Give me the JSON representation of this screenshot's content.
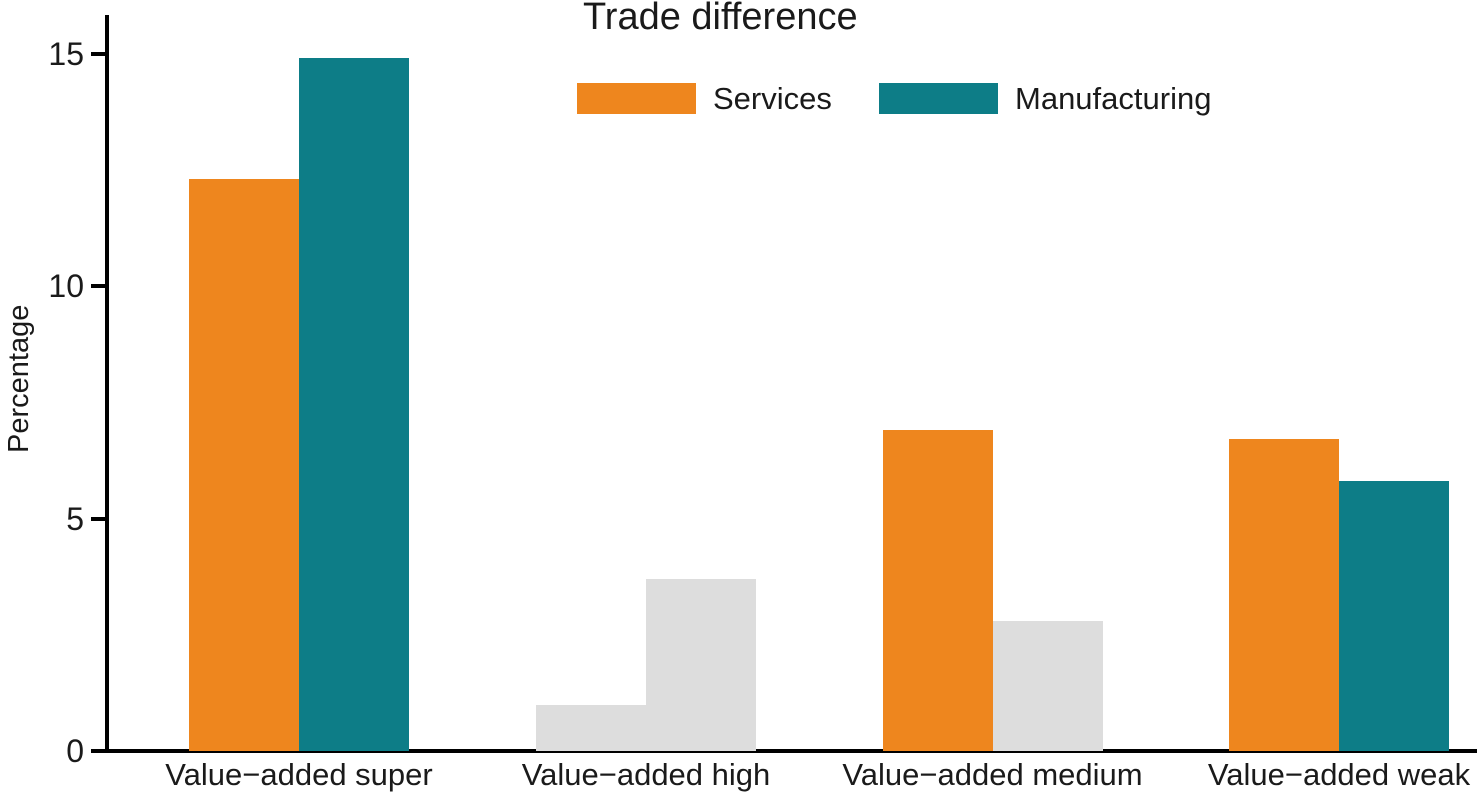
{
  "chart": {
    "background_color": "#FFFFFF",
    "title": "Trade difference",
    "y_axis_title": "Percentage"
  },
  "chart_data": {
    "type": "bar",
    "title": "Trade difference",
    "xlabel": "",
    "ylabel": "Percentage",
    "ylim": [
      0,
      15
    ],
    "yticks": [
      0,
      5,
      10,
      15
    ],
    "ytick_labels": [
      "0",
      "5",
      "10",
      "15"
    ],
    "grid": false,
    "legend_position": "top-center",
    "legend_entries": [
      "Services",
      "Manufacturing"
    ],
    "categories": [
      "Value−added super",
      "Value−added high",
      "Value−added medium",
      "Value−added weak"
    ],
    "series": [
      {
        "name": "Services",
        "color": "#EE861E",
        "values": [
          12.3,
          1.0,
          6.9,
          6.7
        ],
        "bar_colors": [
          "#EE861E",
          "#DDDDDD",
          "#EE861E",
          "#EE861E"
        ],
        "muted": [
          false,
          true,
          false,
          false
        ]
      },
      {
        "name": "Manufacturing",
        "color": "#0D7D87",
        "values": [
          14.9,
          3.7,
          2.8,
          5.8
        ],
        "bar_colors": [
          "#0D7D87",
          "#DDDDDD",
          "#DDDDDD",
          "#0D7D87"
        ],
        "muted": [
          false,
          true,
          true,
          false
        ]
      }
    ],
    "muted_bar_color": "#DDDDDD",
    "axis_color": "#000000",
    "text_color": "#1A1A1A"
  }
}
